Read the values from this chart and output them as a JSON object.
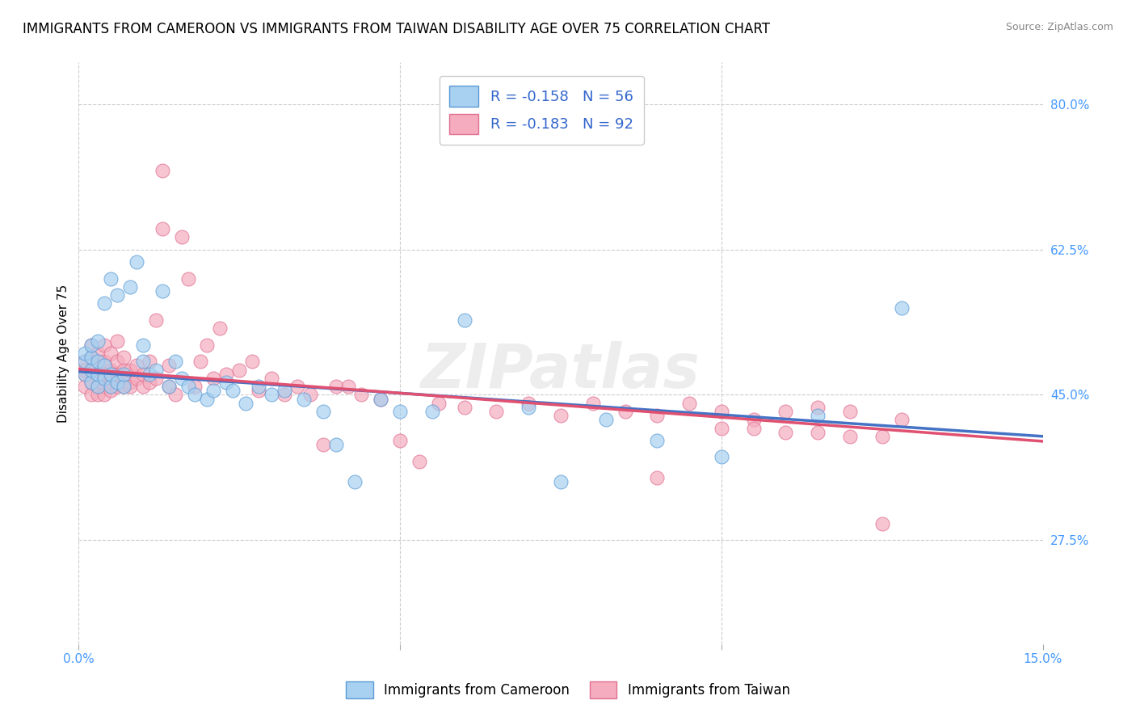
{
  "title": "IMMIGRANTS FROM CAMEROON VS IMMIGRANTS FROM TAIWAN DISABILITY AGE OVER 75 CORRELATION CHART",
  "source": "Source: ZipAtlas.com",
  "ylabel": "Disability Age Over 75",
  "xlim": [
    0.0,
    0.15
  ],
  "ylim": [
    0.15,
    0.85
  ],
  "xtick_vals": [
    0.0,
    0.05,
    0.1,
    0.15
  ],
  "xtick_labels": [
    "0.0%",
    "",
    "",
    "15.0%"
  ],
  "ytick_labels_right": [
    "80.0%",
    "62.5%",
    "45.0%",
    "27.5%"
  ],
  "ytick_vals_right": [
    0.8,
    0.625,
    0.45,
    0.275
  ],
  "legend1_label": "R = -0.158   N = 56",
  "legend2_label": "R = -0.183   N = 92",
  "bottom_legend1": "Immigrants from Cameroon",
  "bottom_legend2": "Immigrants from Taiwan",
  "cameroon_color": "#A8D0F0",
  "cameroon_edge": "#5B9BD5",
  "cameroon_line": "#4472C4",
  "taiwan_color": "#F4ACBE",
  "taiwan_edge": "#E07090",
  "taiwan_line": "#E05070",
  "background_color": "#ffffff",
  "grid_color": "#CCCCCC",
  "watermark_text": "ZIPatlas",
  "title_fontsize": 12,
  "axis_label_fontsize": 11,
  "tick_fontsize": 11,
  "dot_size": 150,
  "dot_alpha": 0.7,
  "cam_intercept": 0.478,
  "cam_slope": -0.52,
  "tai_intercept": 0.481,
  "tai_slope": -0.58,
  "cameroon_x": [
    0.001,
    0.001,
    0.001,
    0.002,
    0.002,
    0.002,
    0.002,
    0.003,
    0.003,
    0.003,
    0.003,
    0.004,
    0.004,
    0.004,
    0.005,
    0.005,
    0.005,
    0.006,
    0.006,
    0.007,
    0.007,
    0.008,
    0.009,
    0.01,
    0.01,
    0.011,
    0.012,
    0.013,
    0.014,
    0.015,
    0.016,
    0.017,
    0.018,
    0.02,
    0.021,
    0.023,
    0.024,
    0.026,
    0.028,
    0.03,
    0.032,
    0.035,
    0.038,
    0.04,
    0.043,
    0.047,
    0.05,
    0.055,
    0.06,
    0.07,
    0.075,
    0.082,
    0.09,
    0.1,
    0.115,
    0.128
  ],
  "cameroon_y": [
    0.475,
    0.49,
    0.5,
    0.465,
    0.48,
    0.495,
    0.51,
    0.46,
    0.475,
    0.49,
    0.515,
    0.47,
    0.485,
    0.56,
    0.46,
    0.475,
    0.59,
    0.465,
    0.57,
    0.46,
    0.475,
    0.58,
    0.61,
    0.49,
    0.51,
    0.475,
    0.48,
    0.575,
    0.46,
    0.49,
    0.47,
    0.46,
    0.45,
    0.445,
    0.455,
    0.465,
    0.455,
    0.44,
    0.46,
    0.45,
    0.455,
    0.445,
    0.43,
    0.39,
    0.345,
    0.445,
    0.43,
    0.43,
    0.54,
    0.435,
    0.345,
    0.42,
    0.395,
    0.375,
    0.425,
    0.555
  ],
  "taiwan_x": [
    0.001,
    0.001,
    0.001,
    0.001,
    0.002,
    0.002,
    0.002,
    0.002,
    0.002,
    0.003,
    0.003,
    0.003,
    0.003,
    0.003,
    0.003,
    0.004,
    0.004,
    0.004,
    0.004,
    0.004,
    0.005,
    0.005,
    0.005,
    0.005,
    0.006,
    0.006,
    0.006,
    0.006,
    0.007,
    0.007,
    0.007,
    0.008,
    0.008,
    0.008,
    0.009,
    0.009,
    0.01,
    0.01,
    0.011,
    0.011,
    0.012,
    0.012,
    0.013,
    0.013,
    0.014,
    0.014,
    0.015,
    0.016,
    0.017,
    0.018,
    0.019,
    0.02,
    0.021,
    0.022,
    0.023,
    0.025,
    0.027,
    0.028,
    0.03,
    0.032,
    0.034,
    0.036,
    0.038,
    0.04,
    0.042,
    0.044,
    0.047,
    0.05,
    0.053,
    0.056,
    0.06,
    0.065,
    0.07,
    0.075,
    0.08,
    0.085,
    0.09,
    0.095,
    0.1,
    0.105,
    0.11,
    0.115,
    0.12,
    0.125,
    0.128,
    0.09,
    0.1,
    0.105,
    0.11,
    0.115,
    0.12,
    0.125
  ],
  "taiwan_y": [
    0.475,
    0.49,
    0.46,
    0.48,
    0.465,
    0.48,
    0.495,
    0.45,
    0.51,
    0.46,
    0.475,
    0.49,
    0.45,
    0.47,
    0.5,
    0.46,
    0.475,
    0.49,
    0.45,
    0.51,
    0.465,
    0.48,
    0.455,
    0.5,
    0.46,
    0.475,
    0.49,
    0.515,
    0.46,
    0.48,
    0.495,
    0.465,
    0.48,
    0.46,
    0.47,
    0.485,
    0.46,
    0.475,
    0.49,
    0.465,
    0.54,
    0.47,
    0.72,
    0.65,
    0.485,
    0.46,
    0.45,
    0.64,
    0.59,
    0.46,
    0.49,
    0.51,
    0.47,
    0.53,
    0.475,
    0.48,
    0.49,
    0.455,
    0.47,
    0.45,
    0.46,
    0.45,
    0.39,
    0.46,
    0.46,
    0.45,
    0.445,
    0.395,
    0.37,
    0.44,
    0.435,
    0.43,
    0.44,
    0.425,
    0.44,
    0.43,
    0.425,
    0.44,
    0.43,
    0.42,
    0.43,
    0.435,
    0.43,
    0.295,
    0.42,
    0.35,
    0.41,
    0.41,
    0.405,
    0.405,
    0.4,
    0.4
  ]
}
